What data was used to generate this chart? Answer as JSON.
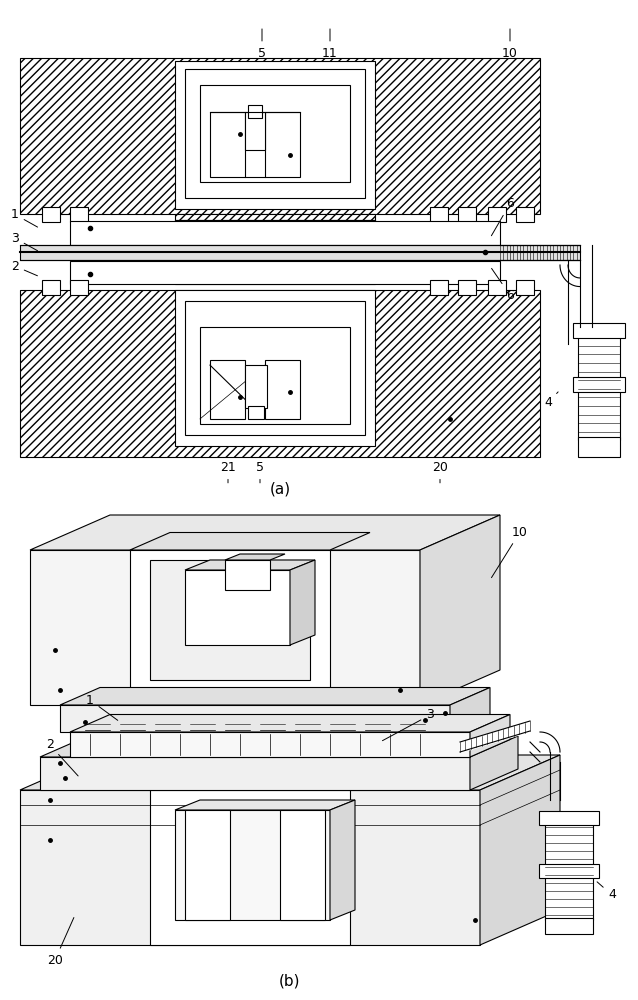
{
  "fig_width": 6.38,
  "fig_height": 10.0,
  "bg_color": "#ffffff",
  "line_color": "#000000",
  "fs": 9,
  "lw_ann": 0.7
}
